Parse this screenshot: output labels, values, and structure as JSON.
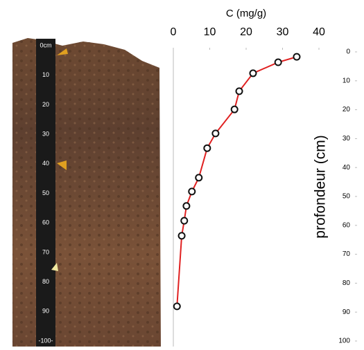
{
  "chart_data": {
    "type": "line",
    "xlabel": "C (mg/g)",
    "ylabel": "profondeur (cm)",
    "x": [
      33.9,
      28.8,
      21.9,
      18.1,
      16.8,
      11.6,
      9.3,
      7.0,
      5.1,
      3.6,
      3.0,
      2.3,
      1.0
    ],
    "y": [
      1.7,
      3.6,
      7.4,
      13.6,
      19.9,
      28.2,
      33.3,
      43.5,
      48.3,
      53.3,
      58.4,
      63.6,
      88.0
    ],
    "color": "#e02020",
    "xlim": [
      0,
      40
    ],
    "xticks": [
      0,
      10,
      20,
      30,
      40
    ],
    "ylim": [
      0,
      100
    ],
    "yticks": [
      0,
      10,
      20,
      30,
      40,
      50,
      60,
      70,
      80,
      90,
      100
    ]
  },
  "photo": {
    "ruler_labels": [
      "0cm",
      "10",
      "20",
      "30",
      "40",
      "50",
      "60",
      "70",
      "80",
      "90",
      "-100-"
    ]
  }
}
